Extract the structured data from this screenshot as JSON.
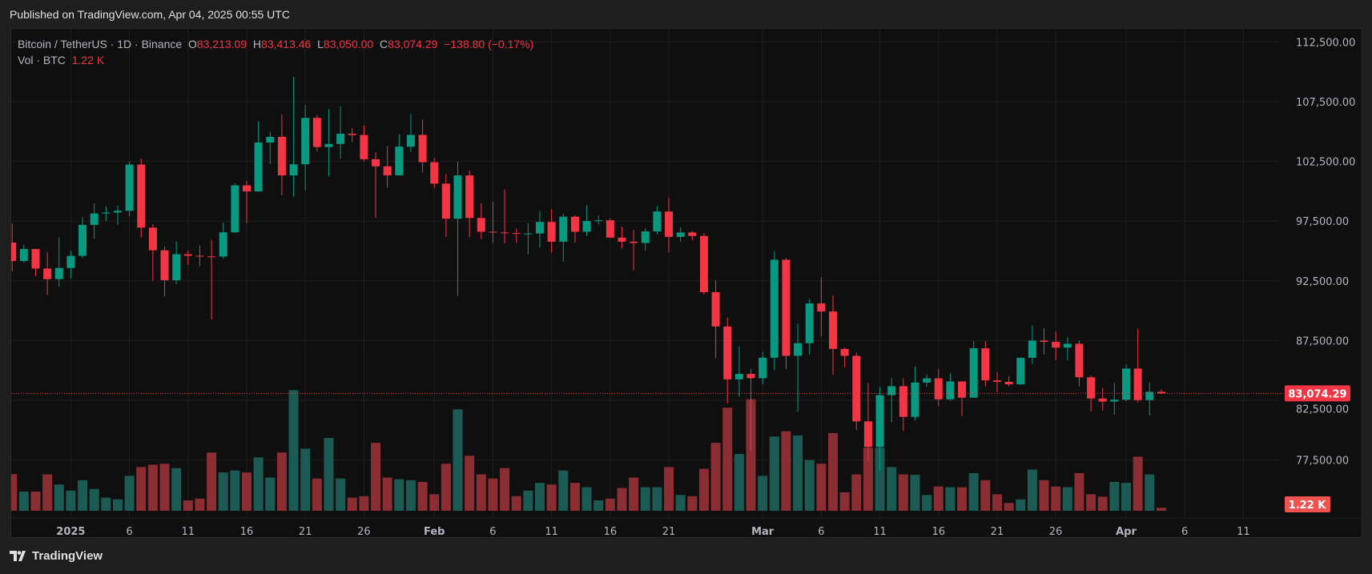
{
  "header": {
    "published": "Published on TradingView.com, Apr 04, 2025 00:55 UTC"
  },
  "legend": {
    "symbol": "Bitcoin / TetherUS · 1D · Binance",
    "o_label": "O",
    "o": "83,213.09",
    "h_label": "H",
    "h": "83,413.46",
    "l_label": "L",
    "l": "83,050.00",
    "c_label": "C",
    "c": "83,074.29",
    "change": "−138.80 (−0.17%)",
    "vol_label": "Vol · BTC",
    "vol": "1.22 K"
  },
  "footer": {
    "brand": "TradingView"
  },
  "colors": {
    "up": "#089981",
    "down": "#f23645",
    "up_vol": "#1c5b53",
    "down_vol": "#8a2e33",
    "background": "#0f0f0f",
    "grid": "#1f1f1f"
  },
  "chart_data": {
    "type": "candlestick",
    "price_ticks": [
      "112,500.00",
      "107,500.00",
      "102,500.00",
      "97,500.00",
      "92,500.00",
      "87,500.00",
      "82,500.00",
      "77,500.00"
    ],
    "price_tick_values": [
      112500,
      107500,
      102500,
      97500,
      92500,
      87500,
      82500,
      77500
    ],
    "last_price_label": "83,074.29",
    "last_price": 83074.29,
    "volume_label": "1.22 K",
    "time_ticks": [
      {
        "label": "2025",
        "date": "2025-01-01"
      },
      {
        "label": "6",
        "date": "2025-01-06"
      },
      {
        "label": "11",
        "date": "2025-01-11"
      },
      {
        "label": "16",
        "date": "2025-01-16"
      },
      {
        "label": "21",
        "date": "2025-01-21"
      },
      {
        "label": "26",
        "date": "2025-01-26"
      },
      {
        "label": "Feb",
        "date": "2025-02-01"
      },
      {
        "label": "6",
        "date": "2025-02-06"
      },
      {
        "label": "11",
        "date": "2025-02-11"
      },
      {
        "label": "16",
        "date": "2025-02-16"
      },
      {
        "label": "21",
        "date": "2025-02-21"
      },
      {
        "label": "Mar",
        "date": "2025-03-01"
      },
      {
        "label": "6",
        "date": "2025-03-06"
      },
      {
        "label": "11",
        "date": "2025-03-11"
      },
      {
        "label": "16",
        "date": "2025-03-16"
      },
      {
        "label": "21",
        "date": "2025-03-21"
      },
      {
        "label": "26",
        "date": "2025-03-26"
      },
      {
        "label": "Apr",
        "date": "2025-04-01"
      },
      {
        "label": "6",
        "date": "2025-04-06"
      },
      {
        "label": "11",
        "date": "2025-04-11"
      }
    ],
    "volume_unit": "K BTC",
    "candles": [
      [
        "2024-12-27",
        95704,
        97294,
        93310,
        94164,
        15.1
      ],
      [
        "2024-12-28",
        94164,
        95525,
        94014,
        95163,
        7.9
      ],
      [
        "2024-12-29",
        95163,
        95174,
        92881,
        93530,
        7.9
      ],
      [
        "2024-12-30",
        93530,
        94903,
        91317,
        92643,
        15
      ],
      [
        "2024-12-31",
        92643,
        96150,
        92000,
        93576,
        10.8
      ],
      [
        "2025-01-01",
        93576,
        95000,
        92700,
        94591,
        8.3
      ],
      [
        "2025-01-02",
        94591,
        97839,
        94392,
        97185,
        12.6
      ],
      [
        "2025-01-03",
        97185,
        98976,
        96000,
        98140,
        9
      ],
      [
        "2025-01-04",
        98140,
        98734,
        97500,
        98220,
        5.4
      ],
      [
        "2025-01-05",
        98220,
        98813,
        97200,
        98364,
        4.7
      ],
      [
        "2025-01-06",
        98364,
        102480,
        97900,
        102235,
        14.4
      ],
      [
        "2025-01-07",
        102235,
        102724,
        96132,
        96954,
        18
      ],
      [
        "2025-01-08",
        96954,
        97258,
        92500,
        95060,
        19
      ],
      [
        "2025-01-09",
        95060,
        95382,
        91203,
        92552,
        19.4
      ],
      [
        "2025-01-10",
        92552,
        95836,
        92206,
        94726,
        17.6
      ],
      [
        "2025-01-11",
        94726,
        95050,
        93831,
        94599,
        4.3
      ],
      [
        "2025-01-12",
        94599,
        95450,
        93711,
        94545,
        5
      ],
      [
        "2025-01-13",
        94545,
        95940,
        89256,
        94536,
        24
      ],
      [
        "2025-01-14",
        94536,
        97371,
        94346,
        96560,
        15.8
      ],
      [
        "2025-01-15",
        96560,
        100681,
        96500,
        100497,
        16.6
      ],
      [
        "2025-01-16",
        100497,
        100866,
        97335,
        99987,
        15.8
      ],
      [
        "2025-01-17",
        99987,
        105865,
        99950,
        104077,
        22
      ],
      [
        "2025-01-18",
        104077,
        104988,
        102277,
        104556,
        13.7
      ],
      [
        "2025-01-19",
        104556,
        106422,
        99651,
        101331,
        24
      ],
      [
        "2025-01-20",
        101331,
        109588,
        99550,
        102260,
        49.7
      ],
      [
        "2025-01-21",
        102260,
        107240,
        100051,
        106143,
        25.6
      ],
      [
        "2025-01-22",
        106143,
        106394,
        103339,
        103706,
        13.3
      ],
      [
        "2025-01-23",
        103706,
        106850,
        101262,
        103960,
        30
      ],
      [
        "2025-01-24",
        103960,
        107120,
        102750,
        104820,
        13.3
      ],
      [
        "2025-01-25",
        104820,
        105286,
        104106,
        104714,
        5.4
      ],
      [
        "2025-01-26",
        104714,
        105500,
        102505,
        102682,
        6
      ],
      [
        "2025-01-27",
        102682,
        103260,
        97777,
        102087,
        28
      ],
      [
        "2025-01-28",
        102087,
        103784,
        100279,
        101332,
        13.7
      ],
      [
        "2025-01-29",
        101332,
        104782,
        101328,
        103733,
        13
      ],
      [
        "2025-01-30",
        103733,
        106457,
        103278,
        104722,
        12.6
      ],
      [
        "2025-01-31",
        104722,
        106012,
        101560,
        102429,
        11.9
      ],
      [
        "2025-02-01",
        102429,
        102783,
        100279,
        100636,
        6.8
      ],
      [
        "2025-02-02",
        100636,
        101456,
        96150,
        97700,
        19.4
      ],
      [
        "2025-02-03",
        97700,
        102500,
        91231,
        101328,
        41.8
      ],
      [
        "2025-02-04",
        101328,
        101745,
        96150,
        97763,
        22.7
      ],
      [
        "2025-02-05",
        97763,
        99000,
        96000,
        96612,
        15
      ],
      [
        "2025-02-06",
        96612,
        99120,
        95676,
        96554,
        13.3
      ],
      [
        "2025-02-07",
        96554,
        100137,
        95620,
        96506,
        17.6
      ],
      [
        "2025-02-08",
        96506,
        96880,
        95688,
        96444,
        6
      ],
      [
        "2025-02-09",
        96444,
        97323,
        94713,
        96462,
        8.3
      ],
      [
        "2025-02-10",
        96462,
        98345,
        95256,
        97430,
        11.5
      ],
      [
        "2025-02-11",
        97430,
        98500,
        94850,
        95778,
        10.8
      ],
      [
        "2025-02-12",
        95778,
        98119,
        94088,
        97870,
        16.6
      ],
      [
        "2025-02-13",
        97870,
        98000,
        95700,
        96608,
        11.5
      ],
      [
        "2025-02-14",
        96608,
        98826,
        96252,
        97500,
        9.7
      ],
      [
        "2025-02-15",
        97500,
        97972,
        97223,
        97569,
        4.3
      ],
      [
        "2025-02-16",
        97569,
        97732,
        96100,
        96118,
        5
      ],
      [
        "2025-02-17",
        96118,
        97046,
        95205,
        95780,
        9.4
      ],
      [
        "2025-02-18",
        95780,
        96753,
        93388,
        95671,
        13.7
      ],
      [
        "2025-02-19",
        95671,
        96899,
        95029,
        96644,
        9.7
      ],
      [
        "2025-02-20",
        96644,
        98756,
        96400,
        98305,
        9.7
      ],
      [
        "2025-02-21",
        98305,
        99475,
        94871,
        96181,
        18
      ],
      [
        "2025-02-22",
        96181,
        96980,
        95770,
        96551,
        6.5
      ],
      [
        "2025-02-23",
        96551,
        96650,
        95900,
        96258,
        6
      ],
      [
        "2025-02-24",
        96258,
        96500,
        91350,
        91552,
        17.3
      ],
      [
        "2025-02-25",
        91552,
        92540,
        86050,
        88680,
        28
      ],
      [
        "2025-02-26",
        88680,
        89414,
        82256,
        84250,
        42.5
      ],
      [
        "2025-02-27",
        84250,
        87000,
        82787,
        84708,
        23.4
      ],
      [
        "2025-02-28",
        84708,
        85120,
        78258,
        84349,
        46
      ],
      [
        "2025-03-01",
        84349,
        86558,
        83824,
        86064,
        14.4
      ],
      [
        "2025-03-02",
        86064,
        95000,
        85050,
        94270,
        30.6
      ],
      [
        "2025-03-03",
        94270,
        94416,
        85117,
        86220,
        32.8
      ],
      [
        "2025-03-04",
        86221,
        88911,
        81529,
        87281,
        31
      ],
      [
        "2025-03-05",
        87281,
        91000,
        86334,
        90606,
        20.9
      ],
      [
        "2025-03-06",
        90606,
        92810,
        87852,
        89931,
        19.4
      ],
      [
        "2025-03-07",
        89931,
        91283,
        84667,
        86801,
        32
      ],
      [
        "2025-03-08",
        86801,
        86897,
        85248,
        86222,
        7.6
      ],
      [
        "2025-03-09",
        86222,
        86500,
        80000,
        80734,
        15
      ],
      [
        "2025-03-10",
        80734,
        83955,
        77420,
        78595,
        26
      ],
      [
        "2025-03-11",
        78595,
        83617,
        76606,
        82932,
        26
      ],
      [
        "2025-03-12",
        82932,
        84359,
        80667,
        83680,
        18
      ],
      [
        "2025-03-13",
        83680,
        84336,
        79940,
        81115,
        15
      ],
      [
        "2025-03-14",
        81115,
        85310,
        80818,
        83983,
        14.8
      ],
      [
        "2025-03-15",
        83983,
        84672,
        83637,
        84338,
        6.5
      ],
      [
        "2025-03-16",
        84338,
        85117,
        82000,
        82580,
        10
      ],
      [
        "2025-03-17",
        82580,
        84756,
        82457,
        84076,
        9.7
      ],
      [
        "2025-03-18",
        84076,
        84076,
        81179,
        82719,
        9.7
      ],
      [
        "2025-03-19",
        82719,
        87453,
        82715,
        86855,
        15.5
      ],
      [
        "2025-03-20",
        86855,
        87443,
        83647,
        84167,
        12.6
      ],
      [
        "2025-03-21",
        84167,
        84850,
        83175,
        84043,
        6.8
      ],
      [
        "2025-03-22",
        84043,
        84513,
        83674,
        83833,
        3.2
      ],
      [
        "2025-03-23",
        83833,
        86094,
        83794,
        86054,
        4.7
      ],
      [
        "2025-03-24",
        86054,
        88765,
        85541,
        87498,
        17
      ],
      [
        "2025-03-25",
        87498,
        88542,
        86347,
        87392,
        12.6
      ],
      [
        "2025-03-26",
        87392,
        88292,
        85861,
        86909,
        10
      ],
      [
        "2025-03-27",
        86909,
        87786,
        85837,
        87232,
        9.7
      ],
      [
        "2025-03-28",
        87232,
        87515,
        83647,
        84424,
        15.5
      ],
      [
        "2025-03-29",
        84424,
        84567,
        81565,
        82648,
        6.8
      ],
      [
        "2025-03-30",
        82648,
        83534,
        81644,
        82390,
        5.8
      ],
      [
        "2025-03-31",
        82390,
        83943,
        81279,
        82550,
        11.9
      ],
      [
        "2025-04-01",
        82550,
        85487,
        82429,
        85158,
        11.5
      ],
      [
        "2025-04-02",
        85158,
        88500,
        82320,
        82516,
        22.3
      ],
      [
        "2025-04-03",
        82516,
        83998,
        81211,
        83213.09,
        15
      ],
      [
        "2025-04-04",
        83213.09,
        83413.46,
        83050,
        83074.29,
        1.22
      ]
    ],
    "candle_fields": [
      "date",
      "open",
      "high",
      "low",
      "close",
      "volume"
    ]
  }
}
